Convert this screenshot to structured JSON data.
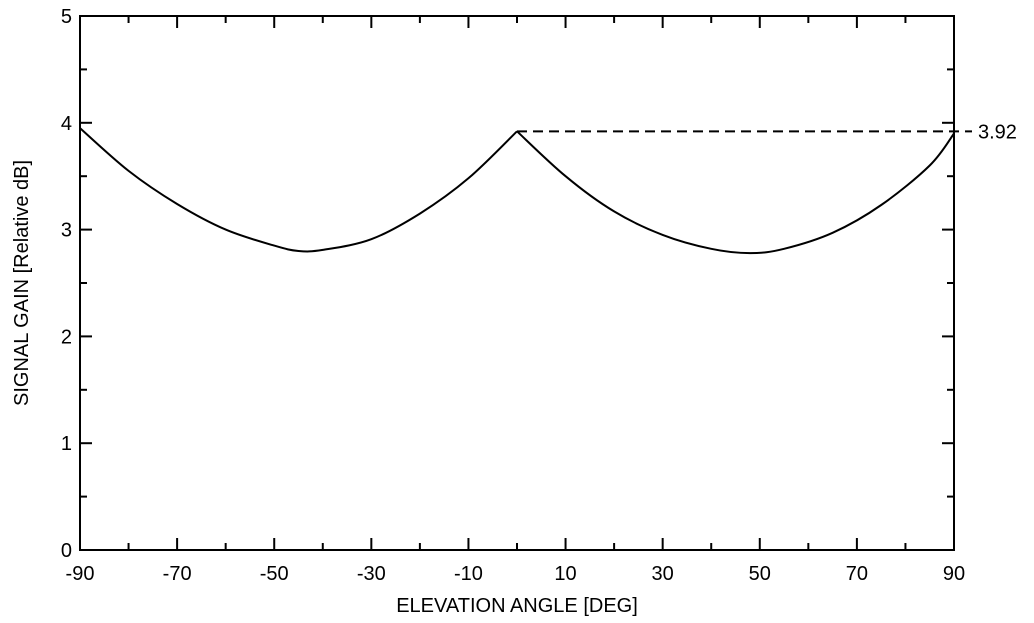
{
  "chart_data": {
    "type": "line",
    "title": "",
    "xlabel": "ELEVATION ANGLE [DEG]",
    "ylabel": "SIGNAL GAIN [Relative dB]",
    "xlim": [
      -90,
      90
    ],
    "ylim": [
      0,
      5
    ],
    "x_ticks": [
      -90,
      -70,
      -50,
      -30,
      -10,
      10,
      30,
      50,
      70,
      90
    ],
    "y_ticks": [
      0,
      1,
      2,
      3,
      4,
      5
    ],
    "x_tick_labels": [
      "-90",
      "-70",
      "-50",
      "-30",
      "-10",
      "10",
      "30",
      "50",
      "70",
      "90"
    ],
    "y_tick_labels": [
      "0",
      "1",
      "2",
      "3",
      "4",
      "5"
    ],
    "grid": false,
    "series": [
      {
        "x": [
          -90,
          -80,
          -70,
          -60,
          -50,
          -45,
          -40,
          -30,
          -20,
          -10,
          0,
          10,
          20,
          30,
          40,
          48,
          55,
          65,
          75,
          85,
          90
        ],
        "y": [
          3.95,
          3.55,
          3.24,
          3.0,
          2.85,
          2.8,
          2.81,
          2.91,
          3.15,
          3.48,
          3.92,
          3.5,
          3.17,
          2.95,
          2.82,
          2.78,
          2.82,
          2.97,
          3.23,
          3.6,
          3.9
        ]
      }
    ],
    "annotations": [
      {
        "text": "3.92",
        "y": 3.92,
        "x_start": 0,
        "style": "dashed"
      }
    ]
  }
}
